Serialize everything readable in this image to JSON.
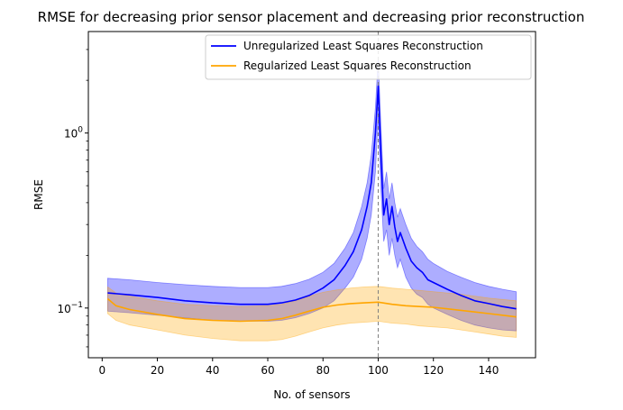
{
  "chart_data": {
    "type": "line",
    "title": "RMSE for decreasing prior sensor placement and decreasing prior reconstruction",
    "xlabel": "No. of sensors",
    "ylabel": "RMSE",
    "xlim": [
      -5,
      157
    ],
    "ylim": [
      0.052,
      3.8
    ],
    "yscale": "log",
    "grid": false,
    "legend_position": "top-right",
    "x_ticks": [
      {
        "value": 0,
        "label": "0"
      },
      {
        "value": 20,
        "label": "20"
      },
      {
        "value": 40,
        "label": "40"
      },
      {
        "value": 60,
        "label": "60"
      },
      {
        "value": 80,
        "label": "80"
      },
      {
        "value": 100,
        "label": "100"
      },
      {
        "value": 120,
        "label": "120"
      },
      {
        "value": 140,
        "label": "140"
      }
    ],
    "y_ticks": [
      {
        "value": 0.1,
        "label": "10",
        "exponent": "−1"
      },
      {
        "value": 1,
        "label": "10",
        "exponent": "0"
      }
    ],
    "reference_line": {
      "x": 100,
      "color": "#808080"
    },
    "series": [
      {
        "name": "Unregularized Least Squares Reconstruction",
        "color": "#0000ff",
        "band_color": "#0000ff",
        "x": [
          2,
          10,
          20,
          30,
          40,
          50,
          60,
          65,
          70,
          75,
          80,
          84,
          88,
          91,
          94,
          96,
          97.5,
          99,
          100,
          101,
          102,
          103,
          104,
          105,
          106,
          107,
          108,
          110,
          112,
          114,
          116,
          118,
          120,
          125,
          130,
          135,
          140,
          145,
          150
        ],
        "y": [
          0.122,
          0.119,
          0.115,
          0.11,
          0.107,
          0.105,
          0.105,
          0.107,
          0.111,
          0.118,
          0.13,
          0.145,
          0.175,
          0.21,
          0.28,
          0.38,
          0.52,
          1.0,
          1.85,
          0.75,
          0.34,
          0.42,
          0.3,
          0.38,
          0.29,
          0.24,
          0.27,
          0.22,
          0.185,
          0.17,
          0.16,
          0.145,
          0.14,
          0.128,
          0.118,
          0.11,
          0.106,
          0.102,
          0.099
        ],
        "upper": [
          0.148,
          0.145,
          0.14,
          0.136,
          0.133,
          0.131,
          0.131,
          0.133,
          0.138,
          0.146,
          0.16,
          0.18,
          0.22,
          0.27,
          0.38,
          0.52,
          0.75,
          1.4,
          2.7,
          1.1,
          0.48,
          0.6,
          0.42,
          0.52,
          0.4,
          0.33,
          0.37,
          0.3,
          0.25,
          0.225,
          0.21,
          0.19,
          0.18,
          0.162,
          0.15,
          0.14,
          0.133,
          0.128,
          0.124
        ],
        "lower": [
          0.096,
          0.094,
          0.091,
          0.088,
          0.085,
          0.084,
          0.084,
          0.085,
          0.088,
          0.093,
          0.1,
          0.11,
          0.13,
          0.15,
          0.19,
          0.25,
          0.34,
          0.6,
          1.25,
          0.48,
          0.24,
          0.28,
          0.2,
          0.25,
          0.2,
          0.17,
          0.19,
          0.15,
          0.13,
          0.12,
          0.115,
          0.105,
          0.1,
          0.092,
          0.085,
          0.08,
          0.077,
          0.075,
          0.074
        ]
      },
      {
        "name": "Regularized Least Squares Reconstruction",
        "color": "#ffa500",
        "band_color": "#ffa500",
        "x": [
          2,
          5,
          10,
          20,
          30,
          40,
          50,
          60,
          65,
          70,
          75,
          80,
          85,
          90,
          95,
          100,
          105,
          110,
          115,
          120,
          125,
          130,
          135,
          140,
          145,
          150
        ],
        "y": [
          0.113,
          0.103,
          0.098,
          0.092,
          0.087,
          0.085,
          0.084,
          0.085,
          0.087,
          0.091,
          0.096,
          0.101,
          0.104,
          0.106,
          0.107,
          0.108,
          0.105,
          0.103,
          0.102,
          0.101,
          0.099,
          0.097,
          0.095,
          0.093,
          0.091,
          0.089
        ],
        "upper": [
          0.132,
          0.122,
          0.117,
          0.11,
          0.105,
          0.103,
          0.102,
          0.103,
          0.105,
          0.11,
          0.117,
          0.123,
          0.127,
          0.13,
          0.132,
          0.133,
          0.13,
          0.128,
          0.126,
          0.124,
          0.122,
          0.12,
          0.117,
          0.114,
          0.112,
          0.11
        ],
        "lower": [
          0.093,
          0.085,
          0.08,
          0.075,
          0.07,
          0.067,
          0.065,
          0.065,
          0.066,
          0.069,
          0.073,
          0.077,
          0.08,
          0.082,
          0.083,
          0.084,
          0.082,
          0.081,
          0.079,
          0.078,
          0.077,
          0.075,
          0.073,
          0.071,
          0.069,
          0.068
        ]
      }
    ]
  }
}
